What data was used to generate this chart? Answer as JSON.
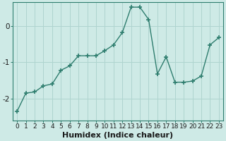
{
  "x": [
    0,
    1,
    2,
    3,
    4,
    5,
    6,
    7,
    8,
    9,
    10,
    11,
    12,
    13,
    14,
    15,
    16,
    17,
    18,
    19,
    20,
    21,
    22,
    23
  ],
  "y": [
    -2.35,
    -1.85,
    -1.82,
    -1.65,
    -1.6,
    -1.22,
    -1.1,
    -0.82,
    -0.82,
    -0.82,
    -0.68,
    -0.52,
    -0.18,
    0.52,
    0.52,
    0.18,
    -1.32,
    -0.85,
    -1.55,
    -1.55,
    -1.52,
    -1.38,
    -0.52,
    -0.32
  ],
  "line_color": "#2e7d6e",
  "marker": "+",
  "marker_size": 5,
  "marker_lw": 1.2,
  "line_width": 1.0,
  "bg_color": "#ceeae6",
  "grid_color": "#afd4cf",
  "xlabel": "Humidex (Indice chaleur)",
  "xlabel_fontsize": 8,
  "xlim": [
    -0.5,
    23.5
  ],
  "ylim": [
    -2.6,
    0.65
  ],
  "yticks": [
    -2,
    -1,
    0
  ],
  "xtick_fontsize": 6.5,
  "ytick_fontsize": 7.5
}
